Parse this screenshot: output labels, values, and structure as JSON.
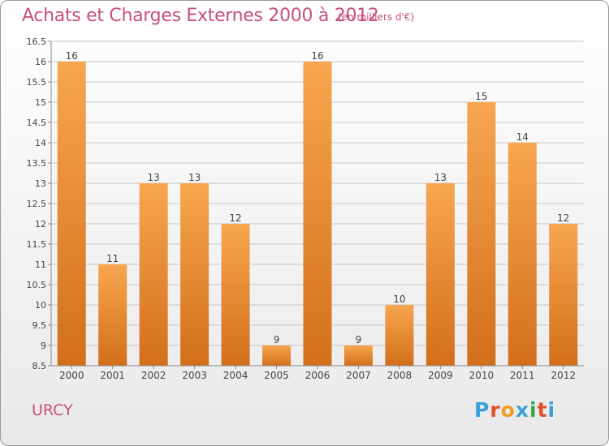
{
  "header": {
    "title": "Achats et Charges Externes 2000 à 2012",
    "subtitle": "(en milliers d'€)"
  },
  "footer": {
    "place": "URCY",
    "logo_letters": [
      "P",
      "r",
      "o",
      "x",
      "i",
      "t",
      "i"
    ],
    "logo_colors": [
      "#3aa0d8",
      "#e0502c",
      "#f0a020",
      "#3aa0d8",
      "#2aa84a",
      "#e0502c",
      "#3aa0d8"
    ]
  },
  "colors": {
    "bar_top": "#f8a650",
    "bar_bottom": "#d26f1a",
    "text": "#444444",
    "grid": "#c6c6c6",
    "accent": "#c8507a"
  },
  "chart_data": {
    "type": "bar",
    "title": "Achats et Charges Externes 2000 à 2012",
    "subtitle": "(en milliers d'€)",
    "xlabel": "",
    "ylabel": "",
    "categories": [
      "2000",
      "2001",
      "2002",
      "2003",
      "2004",
      "2005",
      "2006",
      "2007",
      "2008",
      "2009",
      "2010",
      "2011",
      "2012"
    ],
    "values": [
      16,
      11,
      13,
      13,
      12,
      9,
      16,
      9,
      10,
      13,
      15,
      14,
      12
    ],
    "data_labels": [
      "16",
      "11",
      "13",
      "13",
      "12",
      "9",
      "16",
      "9",
      "10",
      "13",
      "15",
      "14",
      "12"
    ],
    "ylim": [
      8.5,
      16.5
    ],
    "yticks": [
      8.5,
      9,
      9.5,
      10,
      10.5,
      11,
      11.5,
      12,
      12.5,
      13,
      13.5,
      14,
      14.5,
      15,
      15.5,
      16,
      16.5
    ],
    "ytick_labels": [
      "8.5",
      "9",
      "9.5",
      "10",
      "10.5",
      "11",
      "11.5",
      "12",
      "12.5",
      "13",
      "13.5",
      "14",
      "14.5",
      "15",
      "15.5",
      "16",
      "16.5"
    ],
    "grid": true,
    "legend": "none"
  }
}
